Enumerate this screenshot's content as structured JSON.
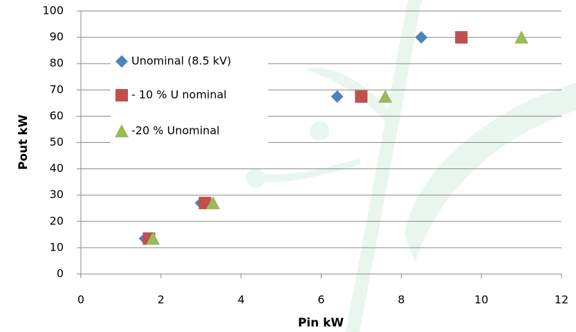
{
  "chart_data": {
    "type": "scatter",
    "x_label": "Pin kW",
    "y_label": "Pout kW",
    "xlim": [
      0,
      12
    ],
    "xticks": [
      0,
      2,
      4,
      6,
      8,
      10,
      12
    ],
    "ylim": [
      0,
      100
    ],
    "yticks": [
      0,
      10,
      20,
      30,
      40,
      50,
      60,
      70,
      80,
      90,
      100
    ],
    "grid": true,
    "legend": "upper left",
    "series": [
      {
        "name": "Unominal (8.5 kV)",
        "color": "#4f81bd",
        "marker": "diamond",
        "x": [
          1.6,
          3.0,
          6.4,
          8.5
        ],
        "values": [
          13.5,
          27,
          67.5,
          90
        ]
      },
      {
        "name": "- 10 % U nominal",
        "color": "#c0504d",
        "marker": "square",
        "x": [
          1.7,
          3.1,
          7.0,
          9.5
        ],
        "values": [
          13.5,
          27,
          67.5,
          90
        ]
      },
      {
        "name": "-20 % Unominal",
        "color": "#9bbb59",
        "marker": "triangle",
        "x": [
          1.8,
          3.3,
          7.6,
          11.0
        ],
        "values": [
          13.5,
          27,
          67.5,
          90
        ]
      }
    ]
  }
}
